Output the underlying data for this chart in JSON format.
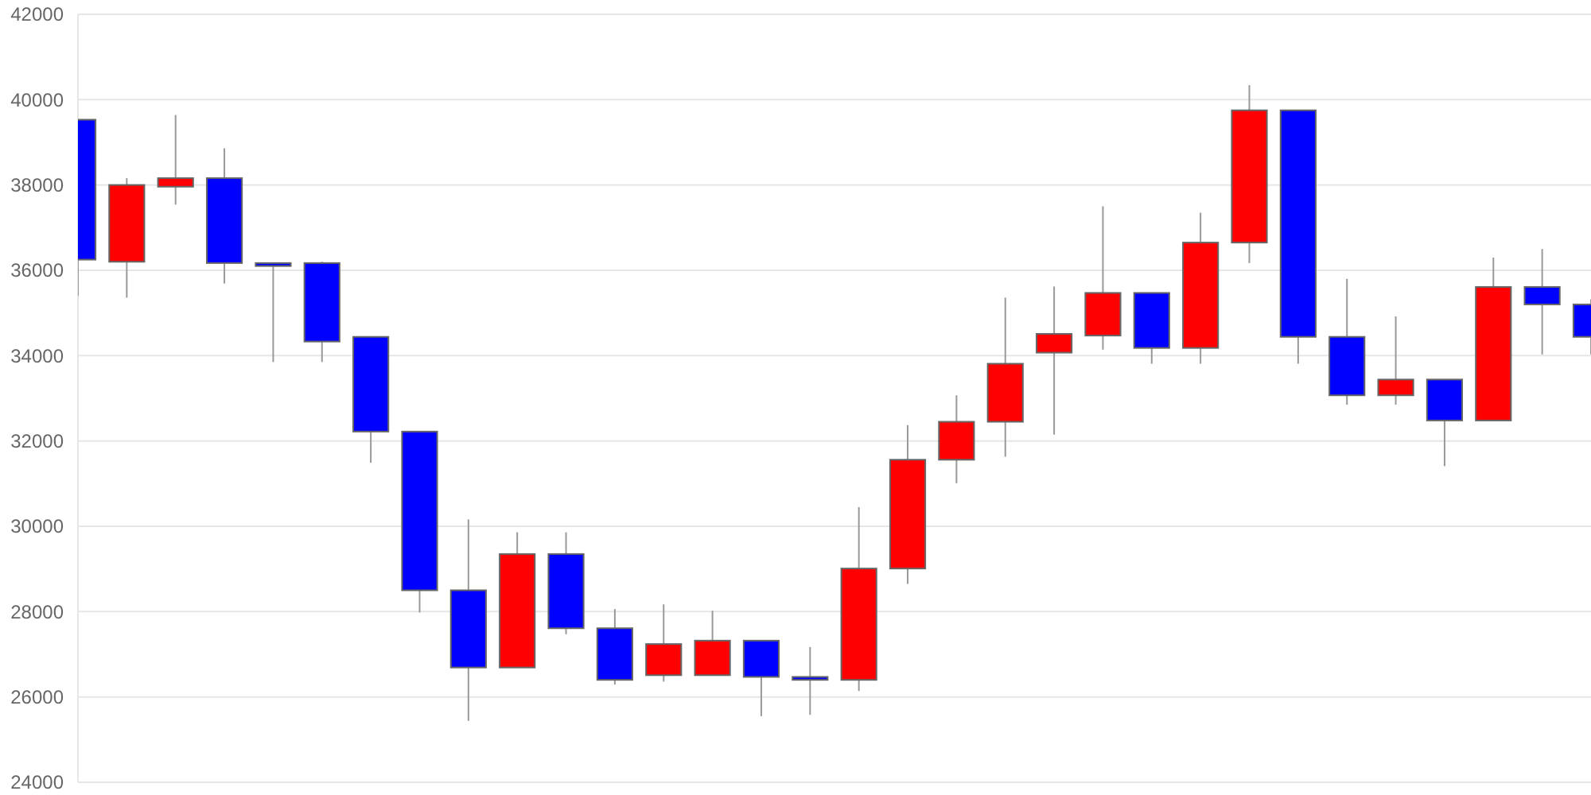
{
  "chart_data": {
    "type": "candlestick",
    "categories": [
      null,
      null,
      null,
      null,
      null,
      null,
      null,
      null,
      null,
      null,
      null,
      null,
      null,
      null,
      null,
      null,
      null,
      null,
      null,
      null,
      null,
      null,
      null,
      null,
      null,
      null,
      null,
      null,
      null,
      null,
      null,
      null
    ],
    "ohlc": [
      [
        39530,
        39530,
        35400,
        36250
      ],
      [
        36200,
        38160,
        35360,
        38000
      ],
      [
        37960,
        39640,
        37540,
        38160
      ],
      [
        38160,
        38860,
        35690,
        36170
      ],
      [
        36170,
        36170,
        33850,
        36100
      ],
      [
        36170,
        36200,
        33850,
        34330
      ],
      [
        34440,
        34440,
        31490,
        32220
      ],
      [
        32220,
        32220,
        27980,
        28500
      ],
      [
        28500,
        30160,
        25440,
        26690
      ],
      [
        26690,
        29860,
        26690,
        29350
      ],
      [
        29350,
        29860,
        27470,
        27610
      ],
      [
        27610,
        28060,
        26290,
        26400
      ],
      [
        26510,
        28170,
        26360,
        27240
      ],
      [
        26510,
        28020,
        26510,
        27320
      ],
      [
        27320,
        27320,
        25550,
        26470
      ],
      [
        26470,
        27170,
        25580,
        26400
      ],
      [
        26400,
        30450,
        26140,
        29010
      ],
      [
        29010,
        32370,
        28650,
        31560
      ],
      [
        31560,
        33070,
        31010,
        32450
      ],
      [
        32450,
        35360,
        31630,
        33810
      ],
      [
        34070,
        35620,
        32150,
        34510
      ],
      [
        34470,
        37500,
        34140,
        35470
      ],
      [
        35470,
        35470,
        33810,
        34180
      ],
      [
        34180,
        37350,
        33810,
        36650
      ],
      [
        36650,
        40340,
        36170,
        39750
      ],
      [
        39750,
        39750,
        33810,
        34440
      ],
      [
        34440,
        35800,
        32850,
        33070
      ],
      [
        33070,
        34920,
        32850,
        33440
      ],
      [
        33440,
        33440,
        31410,
        32480
      ],
      [
        32480,
        36300,
        32480,
        35610
      ],
      [
        35610,
        36500,
        34030,
        35200
      ],
      [
        35200,
        35320,
        34030,
        34440
      ]
    ],
    "colors": [
      "#0000ff",
      "#ff0000",
      "#ff0000",
      "#0000ff",
      "#0000ff",
      "#0000ff",
      "#0000ff",
      "#0000ff",
      "#0000ff",
      "#ff0000",
      "#0000ff",
      "#0000ff",
      "#ff0000",
      "#ff0000",
      "#0000ff",
      "#0000ff",
      "#ff0000",
      "#ff0000",
      "#ff0000",
      "#ff0000",
      "#ff0000",
      "#ff0000",
      "#0000ff",
      "#ff0000",
      "#ff0000",
      "#0000ff",
      "#0000ff",
      "#ff0000",
      "#0000ff",
      "#ff0000",
      "#0000ff",
      "#0000ff"
    ],
    "ylim": [
      24000,
      42000
    ],
    "yticks": [
      24000,
      26000,
      28000,
      30000,
      32000,
      34000,
      36000,
      38000,
      40000,
      42000
    ],
    "grid": "y",
    "tick_labels": "y"
  }
}
